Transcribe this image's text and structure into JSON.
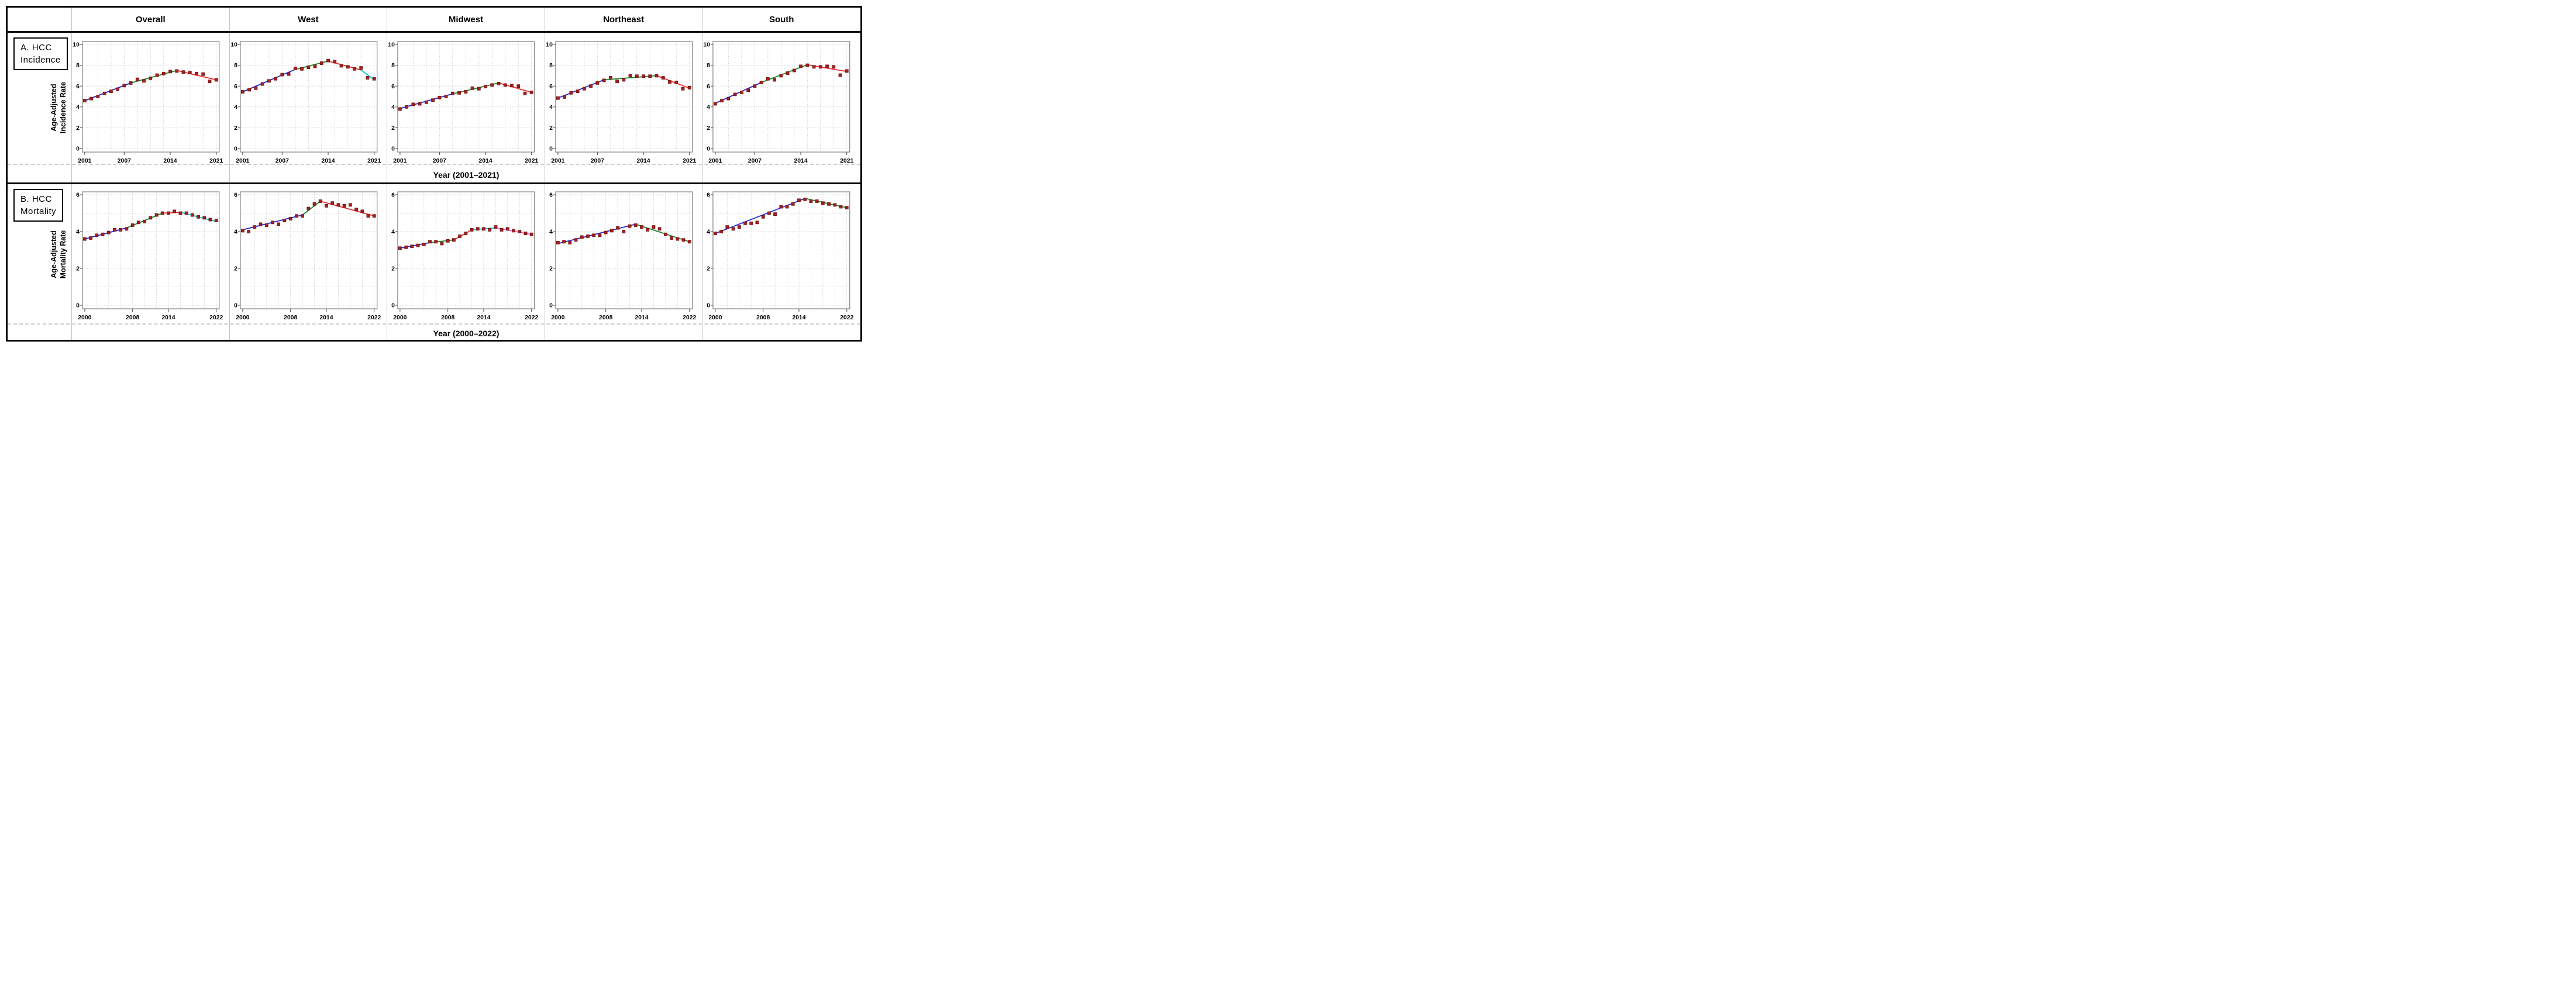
{
  "figure": {
    "header_columns": [
      "Overall",
      "West",
      "Midwest",
      "Northeast",
      "South"
    ],
    "rows": [
      {
        "panel_label": "A. HCC\nIncidence",
        "y_axis_label": "Age-Adjusted\nIncidence Rate",
        "x_axis_label": "Year (2001–2021)"
      },
      {
        "panel_label": "B. HCC\nMortality",
        "y_axis_label": "Age-Adjusted\nMortality Rate",
        "x_axis_label": "Year (2000–2022)"
      }
    ],
    "colors": {
      "point_fill": "#a32121",
      "point_edge": "#6f0f0f",
      "blue": "#2b2bd0",
      "green": "#1e8b30",
      "red": "#ea3232",
      "cyan": "#00cbcb",
      "magenta": "#f365f3",
      "grid": "#bdbdbd",
      "frame": "#8a8a8a",
      "divider": "#c4c4c4",
      "border": "#000000"
    }
  },
  "chart_data": [
    {
      "type": "scatter",
      "trend": "joinpoint",
      "panel": "A. HCC Incidence",
      "region": "Overall",
      "xlabel": "Year (2001–2021)",
      "ylabel": "Age-Adjusted Incidence Rate",
      "xlim": [
        2001,
        2021
      ],
      "ylim": [
        0,
        10
      ],
      "xticks": [
        2001,
        2007,
        2014,
        2021
      ],
      "yticks": [
        0,
        2,
        4,
        6,
        8,
        10
      ],
      "grid_y_step": 2,
      "x": [
        2001,
        2002,
        2003,
        2004,
        2005,
        2006,
        2007,
        2008,
        2009,
        2010,
        2011,
        2012,
        2013,
        2014,
        2015,
        2016,
        2017,
        2018,
        2019,
        2020,
        2021
      ],
      "values": [
        4.6,
        4.8,
        5.0,
        5.3,
        5.5,
        5.7,
        6.05,
        6.3,
        6.65,
        6.5,
        6.75,
        7.05,
        7.2,
        7.4,
        7.45,
        7.35,
        7.3,
        7.2,
        7.15,
        6.45,
        6.6
      ],
      "segments": [
        {
          "color": "blue",
          "x0": 2001,
          "y0": 4.6,
          "x1": 2008,
          "y1": 6.3
        },
        {
          "color": "green",
          "x0": 2008,
          "y0": 6.3,
          "x1": 2015,
          "y1": 7.5
        },
        {
          "color": "red",
          "x0": 2015,
          "y0": 7.5,
          "x1": 2021,
          "y1": 6.6
        }
      ]
    },
    {
      "type": "scatter",
      "trend": "joinpoint",
      "panel": "A. HCC Incidence",
      "region": "West",
      "xlabel": "Year (2001–2021)",
      "ylabel": "Age-Adjusted Incidence Rate",
      "xlim": [
        2001,
        2021
      ],
      "ylim": [
        0,
        10
      ],
      "xticks": [
        2001,
        2007,
        2014,
        2021
      ],
      "yticks": [
        0,
        2,
        4,
        6,
        8,
        10
      ],
      "grid_y_step": 2,
      "x": [
        2001,
        2002,
        2003,
        2004,
        2005,
        2006,
        2007,
        2008,
        2009,
        2010,
        2011,
        2012,
        2013,
        2014,
        2015,
        2016,
        2017,
        2018,
        2019,
        2020,
        2021
      ],
      "values": [
        5.45,
        5.65,
        5.8,
        6.2,
        6.5,
        6.7,
        7.1,
        7.15,
        7.7,
        7.65,
        7.8,
        7.9,
        8.2,
        8.45,
        8.35,
        7.95,
        7.85,
        7.65,
        7.75,
        6.8,
        6.7
      ],
      "segments": [
        {
          "color": "blue",
          "x0": 2001,
          "y0": 5.45,
          "x1": 2009,
          "y1": 7.6
        },
        {
          "color": "green",
          "x0": 2009,
          "y0": 7.6,
          "x1": 2014,
          "y1": 8.4
        },
        {
          "color": "red",
          "x0": 2014,
          "y0": 8.4,
          "x1": 2019,
          "y1": 7.55
        },
        {
          "color": "cyan",
          "x0": 2019,
          "y0": 7.55,
          "x1": 2021,
          "y1": 6.6
        }
      ]
    },
    {
      "type": "scatter",
      "trend": "joinpoint",
      "panel": "A. HCC Incidence",
      "region": "Midwest",
      "xlabel": "Year (2001–2021)",
      "ylabel": "Age-Adjusted Incidence Rate",
      "xlim": [
        2001,
        2021
      ],
      "ylim": [
        0,
        10
      ],
      "xticks": [
        2001,
        2007,
        2014,
        2021
      ],
      "yticks": [
        0,
        2,
        4,
        6,
        8,
        10
      ],
      "grid_y_step": 2,
      "x": [
        2001,
        2002,
        2003,
        2004,
        2005,
        2006,
        2007,
        2008,
        2009,
        2010,
        2011,
        2012,
        2013,
        2014,
        2015,
        2016,
        2017,
        2018,
        2019,
        2020,
        2021
      ],
      "values": [
        3.8,
        4.0,
        4.25,
        4.3,
        4.45,
        4.65,
        4.9,
        5.0,
        5.3,
        5.35,
        5.45,
        5.8,
        5.75,
        5.95,
        6.1,
        6.25,
        6.1,
        6.05,
        6.0,
        5.3,
        5.4
      ],
      "segments": [
        {
          "color": "blue",
          "x0": 2001,
          "y0": 3.85,
          "x1": 2009,
          "y1": 5.25
        },
        {
          "color": "green",
          "x0": 2009,
          "y0": 5.25,
          "x1": 2016,
          "y1": 6.3
        },
        {
          "color": "red",
          "x0": 2016,
          "y0": 6.3,
          "x1": 2021,
          "y1": 5.4
        }
      ]
    },
    {
      "type": "scatter",
      "trend": "joinpoint",
      "panel": "A. HCC Incidence",
      "region": "Northeast",
      "xlabel": "Year (2001–2021)",
      "ylabel": "Age-Adjusted Incidence Rate",
      "xlim": [
        2001,
        2021
      ],
      "ylim": [
        0,
        10
      ],
      "xticks": [
        2001,
        2007,
        2014,
        2021
      ],
      "yticks": [
        0,
        2,
        4,
        6,
        8,
        10
      ],
      "grid_y_step": 2,
      "x": [
        2001,
        2002,
        2003,
        2004,
        2005,
        2006,
        2007,
        2008,
        2009,
        2010,
        2011,
        2012,
        2013,
        2014,
        2015,
        2016,
        2017,
        2018,
        2019,
        2020,
        2021
      ],
      "values": [
        4.85,
        4.95,
        5.35,
        5.5,
        5.75,
        6.0,
        6.3,
        6.55,
        6.8,
        6.45,
        6.6,
        7.0,
        6.95,
        6.95,
        6.95,
        7.0,
        6.8,
        6.4,
        6.35,
        5.75,
        5.85
      ],
      "segments": [
        {
          "color": "blue",
          "x0": 2001,
          "y0": 4.85,
          "x1": 2008,
          "y1": 6.6
        },
        {
          "color": "green",
          "x0": 2008,
          "y0": 6.6,
          "x1": 2016,
          "y1": 7.0
        },
        {
          "color": "red",
          "x0": 2016,
          "y0": 7.0,
          "x1": 2021,
          "y1": 5.8
        }
      ]
    },
    {
      "type": "scatter",
      "trend": "joinpoint",
      "panel": "A. HCC Incidence",
      "region": "South",
      "xlabel": "Year (2001–2021)",
      "ylabel": "Age-Adjusted Incidence Rate",
      "xlim": [
        2001,
        2021
      ],
      "ylim": [
        0,
        10
      ],
      "xticks": [
        2001,
        2007,
        2014,
        2021
      ],
      "yticks": [
        0,
        2,
        4,
        6,
        8,
        10
      ],
      "grid_y_step": 2,
      "x": [
        2001,
        2002,
        2003,
        2004,
        2005,
        2006,
        2007,
        2008,
        2009,
        2010,
        2011,
        2012,
        2013,
        2014,
        2015,
        2016,
        2017,
        2018,
        2019,
        2020,
        2021
      ],
      "values": [
        4.3,
        4.6,
        4.8,
        5.2,
        5.4,
        5.6,
        6.0,
        6.35,
        6.7,
        6.6,
        7.0,
        7.25,
        7.5,
        7.9,
        8.0,
        7.85,
        7.85,
        7.9,
        7.85,
        7.05,
        7.45
      ],
      "segments": [
        {
          "color": "blue",
          "x0": 2001,
          "y0": 4.35,
          "x1": 2008,
          "y1": 6.35
        },
        {
          "color": "green",
          "x0": 2008,
          "y0": 6.35,
          "x1": 2015,
          "y1": 8.05
        },
        {
          "color": "red",
          "x0": 2015,
          "y0": 8.05,
          "x1": 2021,
          "y1": 7.4
        }
      ]
    },
    {
      "type": "scatter",
      "trend": "joinpoint",
      "panel": "B. HCC Mortality",
      "region": "Overall",
      "xlabel": "Year (2000–2022)",
      "ylabel": "Age-Adjusted Mortality Rate",
      "xlim": [
        2000,
        2022
      ],
      "ylim": [
        0,
        6
      ],
      "xticks": [
        2000,
        2008,
        2014,
        2022
      ],
      "yticks": [
        0,
        2,
        4,
        6
      ],
      "grid_y_step": 1,
      "x": [
        2000,
        2001,
        2002,
        2003,
        2004,
        2005,
        2006,
        2007,
        2008,
        2009,
        2010,
        2011,
        2012,
        2013,
        2014,
        2015,
        2016,
        2017,
        2018,
        2019,
        2020,
        2021,
        2022
      ],
      "values": [
        3.6,
        3.65,
        3.8,
        3.85,
        3.95,
        4.1,
        4.1,
        4.15,
        4.35,
        4.5,
        4.55,
        4.75,
        4.9,
        5.0,
        5.0,
        5.1,
        5.0,
        5.0,
        4.9,
        4.8,
        4.75,
        4.65,
        4.6
      ],
      "segments": [
        {
          "color": "blue",
          "x0": 2000,
          "y0": 3.6,
          "x1": 2007,
          "y1": 4.2
        },
        {
          "color": "green",
          "x0": 2007,
          "y0": 4.2,
          "x1": 2013,
          "y1": 5.0
        },
        {
          "color": "red",
          "x0": 2013,
          "y0": 5.0,
          "x1": 2016,
          "y1": 5.05
        },
        {
          "color": "cyan",
          "x0": 2016,
          "y0": 5.05,
          "x1": 2022,
          "y1": 4.55
        }
      ]
    },
    {
      "type": "scatter",
      "trend": "joinpoint",
      "panel": "B. HCC Mortality",
      "region": "West",
      "xlabel": "Year (2000–2022)",
      "ylabel": "Age-Adjusted Mortality Rate",
      "xlim": [
        2000,
        2022
      ],
      "ylim": [
        0,
        6
      ],
      "xticks": [
        2000,
        2008,
        2014,
        2022
      ],
      "yticks": [
        0,
        2,
        4,
        6
      ],
      "grid_y_step": 1,
      "x": [
        2000,
        2001,
        2002,
        2003,
        2004,
        2005,
        2006,
        2007,
        2008,
        2009,
        2010,
        2011,
        2012,
        2013,
        2014,
        2015,
        2016,
        2017,
        2018,
        2019,
        2020,
        2021,
        2022
      ],
      "values": [
        4.05,
        4.0,
        4.25,
        4.4,
        4.35,
        4.5,
        4.4,
        4.6,
        4.7,
        4.85,
        4.85,
        5.25,
        5.5,
        5.65,
        5.4,
        5.55,
        5.45,
        5.4,
        5.45,
        5.2,
        5.1,
        4.85,
        4.85
      ],
      "segments": [
        {
          "color": "blue",
          "x0": 2000,
          "y0": 4.1,
          "x1": 2010,
          "y1": 4.9
        },
        {
          "color": "green",
          "x0": 2010,
          "y0": 4.9,
          "x1": 2013,
          "y1": 5.65
        },
        {
          "color": "red",
          "x0": 2013,
          "y0": 5.65,
          "x1": 2022,
          "y1": 4.85
        }
      ]
    },
    {
      "type": "scatter",
      "trend": "joinpoint",
      "panel": "B. HCC Mortality",
      "region": "Midwest",
      "xlabel": "Year (2000–2022)",
      "ylabel": "Age-Adjusted Mortality Rate",
      "xlim": [
        2000,
        2022
      ],
      "ylim": [
        0,
        6
      ],
      "xticks": [
        2000,
        2008,
        2014,
        2022
      ],
      "yticks": [
        0,
        2,
        4,
        6
      ],
      "grid_y_step": 1,
      "x": [
        2000,
        2001,
        2002,
        2003,
        2004,
        2005,
        2006,
        2007,
        2008,
        2009,
        2010,
        2011,
        2012,
        2013,
        2014,
        2015,
        2016,
        2017,
        2018,
        2019,
        2020,
        2021,
        2022
      ],
      "values": [
        3.1,
        3.15,
        3.2,
        3.25,
        3.3,
        3.45,
        3.45,
        3.35,
        3.5,
        3.55,
        3.75,
        3.9,
        4.1,
        4.15,
        4.15,
        4.1,
        4.25,
        4.1,
        4.15,
        4.05,
        4.0,
        3.9,
        3.85
      ],
      "segments": [
        {
          "color": "blue",
          "x0": 2000,
          "y0": 3.1,
          "x1": 2005,
          "y1": 3.4
        },
        {
          "color": "green",
          "x0": 2005,
          "y0": 3.4,
          "x1": 2009,
          "y1": 3.55
        },
        {
          "color": "red",
          "x0": 2009,
          "y0": 3.55,
          "x1": 2012,
          "y1": 4.1
        },
        {
          "color": "cyan",
          "x0": 2012,
          "y0": 4.1,
          "x1": 2016,
          "y1": 4.2
        },
        {
          "color": "magenta",
          "x0": 2016,
          "y0": 4.2,
          "x1": 2022,
          "y1": 3.85
        }
      ]
    },
    {
      "type": "scatter",
      "trend": "joinpoint",
      "panel": "B. HCC Mortality",
      "region": "Northeast",
      "xlabel": "Year (2000–2022)",
      "ylabel": "Age-Adjusted Mortality Rate",
      "xlim": [
        2000,
        2022
      ],
      "ylim": [
        0,
        6
      ],
      "xticks": [
        2000,
        2008,
        2014,
        2022
      ],
      "yticks": [
        0,
        2,
        4,
        6
      ],
      "grid_y_step": 1,
      "x": [
        2000,
        2001,
        2002,
        2003,
        2004,
        2005,
        2006,
        2007,
        2008,
        2009,
        2010,
        2011,
        2012,
        2013,
        2014,
        2015,
        2016,
        2017,
        2018,
        2019,
        2020,
        2021,
        2022
      ],
      "values": [
        3.4,
        3.45,
        3.4,
        3.55,
        3.7,
        3.75,
        3.8,
        3.8,
        3.95,
        4.05,
        4.2,
        4.0,
        4.3,
        4.35,
        4.25,
        4.1,
        4.25,
        4.15,
        3.85,
        3.65,
        3.6,
        3.55,
        3.45
      ],
      "segments": [
        {
          "color": "blue",
          "x0": 2000,
          "y0": 3.35,
          "x1": 2013,
          "y1": 4.4
        },
        {
          "color": "green",
          "x0": 2013,
          "y0": 4.4,
          "x1": 2022,
          "y1": 3.45
        }
      ]
    },
    {
      "type": "scatter",
      "trend": "joinpoint",
      "panel": "B. HCC Mortality",
      "region": "South",
      "xlabel": "Year (2000–2022)",
      "ylabel": "Age-Adjusted Mortality Rate",
      "xlim": [
        2000,
        2022
      ],
      "ylim": [
        0,
        6
      ],
      "xticks": [
        2000,
        2008,
        2014,
        2022
      ],
      "yticks": [
        0,
        2,
        4,
        6
      ],
      "grid_y_step": 1,
      "x": [
        2000,
        2001,
        2002,
        2003,
        2004,
        2005,
        2006,
        2007,
        2008,
        2009,
        2010,
        2011,
        2012,
        2013,
        2014,
        2015,
        2016,
        2017,
        2018,
        2019,
        2020,
        2021,
        2022
      ],
      "values": [
        3.9,
        4.0,
        4.25,
        4.15,
        4.25,
        4.45,
        4.45,
        4.5,
        4.8,
        5.0,
        4.95,
        5.35,
        5.35,
        5.5,
        5.7,
        5.75,
        5.65,
        5.65,
        5.55,
        5.5,
        5.45,
        5.35,
        5.3
      ],
      "segments": [
        {
          "color": "blue",
          "x0": 2000,
          "y0": 3.9,
          "x1": 2015,
          "y1": 5.8
        },
        {
          "color": "green",
          "x0": 2015,
          "y0": 5.8,
          "x1": 2022,
          "y1": 5.3
        }
      ]
    }
  ]
}
